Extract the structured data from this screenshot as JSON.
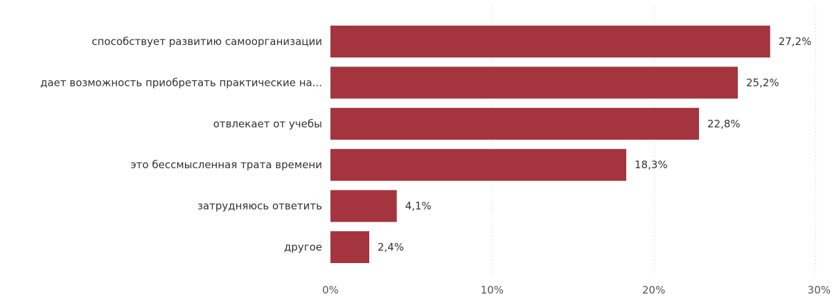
{
  "chart_data": {
    "type": "bar",
    "orientation": "horizontal",
    "categories": [
      "способствует развитию самоорганизации",
      "дает возможность приобретать практические на...",
      "отвлекает от учебы",
      "это бессмысленная трата времени",
      "затрудняюсь ответить",
      "другое"
    ],
    "values": [
      27.2,
      25.2,
      22.8,
      18.3,
      4.1,
      2.4
    ],
    "value_labels": [
      "27,2%",
      "25,2%",
      "22,8%",
      "18,3%",
      "4,1%",
      "2,4%"
    ],
    "xlim": [
      0,
      30
    ],
    "ticks": [
      0,
      10,
      20,
      30
    ],
    "tick_labels": [
      "0%",
      "10%",
      "20%",
      "30%"
    ],
    "grid": true,
    "bar_color": "#a4343e"
  }
}
